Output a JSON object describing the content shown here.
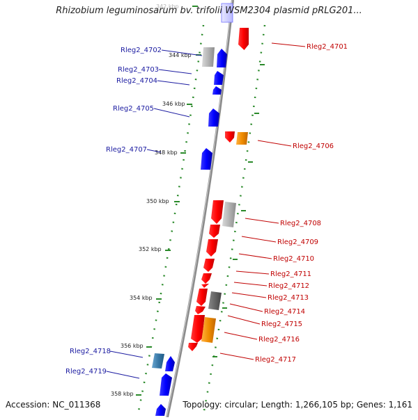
{
  "title": "Rhizobium leguminosarum bv. trifolii WSM2304 plasmid pRLG201...",
  "footer": {
    "accession": "Accession: NC_011368",
    "summary": "Topology: circular; Length: 1,266,105 bp; Genes: 1,161"
  },
  "kbp_ticks": [
    "342 kbp",
    "344 kbp",
    "346 kbp",
    "348 kbp",
    "350 kbp",
    "352 kbp",
    "354 kbp",
    "356 kbp",
    "358 kbp"
  ],
  "left_genes": [
    "Rleg2_4702",
    "Rleg2_4703",
    "Rleg2_4704",
    "Rleg2_4705",
    "Rleg2_4707",
    "Rleg2_4718",
    "Rleg2_4719"
  ],
  "right_genes": [
    "Rleg2_4701",
    "Rleg2_4706",
    "Rleg2_4708",
    "Rleg2_4709",
    "Rleg2_4710",
    "Rleg2_4711",
    "Rleg2_4712",
    "Rleg2_4713",
    "Rleg2_4714",
    "Rleg2_4715",
    "Rleg2_4716",
    "Rleg2_4717"
  ],
  "colors": {
    "backbone": "#8a8a8a",
    "forward_gene": "#ff0000",
    "reverse_gene": "#0000ff",
    "gray_gene": "#b4b4b4",
    "orange_gene": "#f08c00",
    "teal_gene": "#3a7aa8",
    "tick": "#2a8a2a",
    "left_label": "#1a1aa0",
    "right_label": "#c00000"
  }
}
